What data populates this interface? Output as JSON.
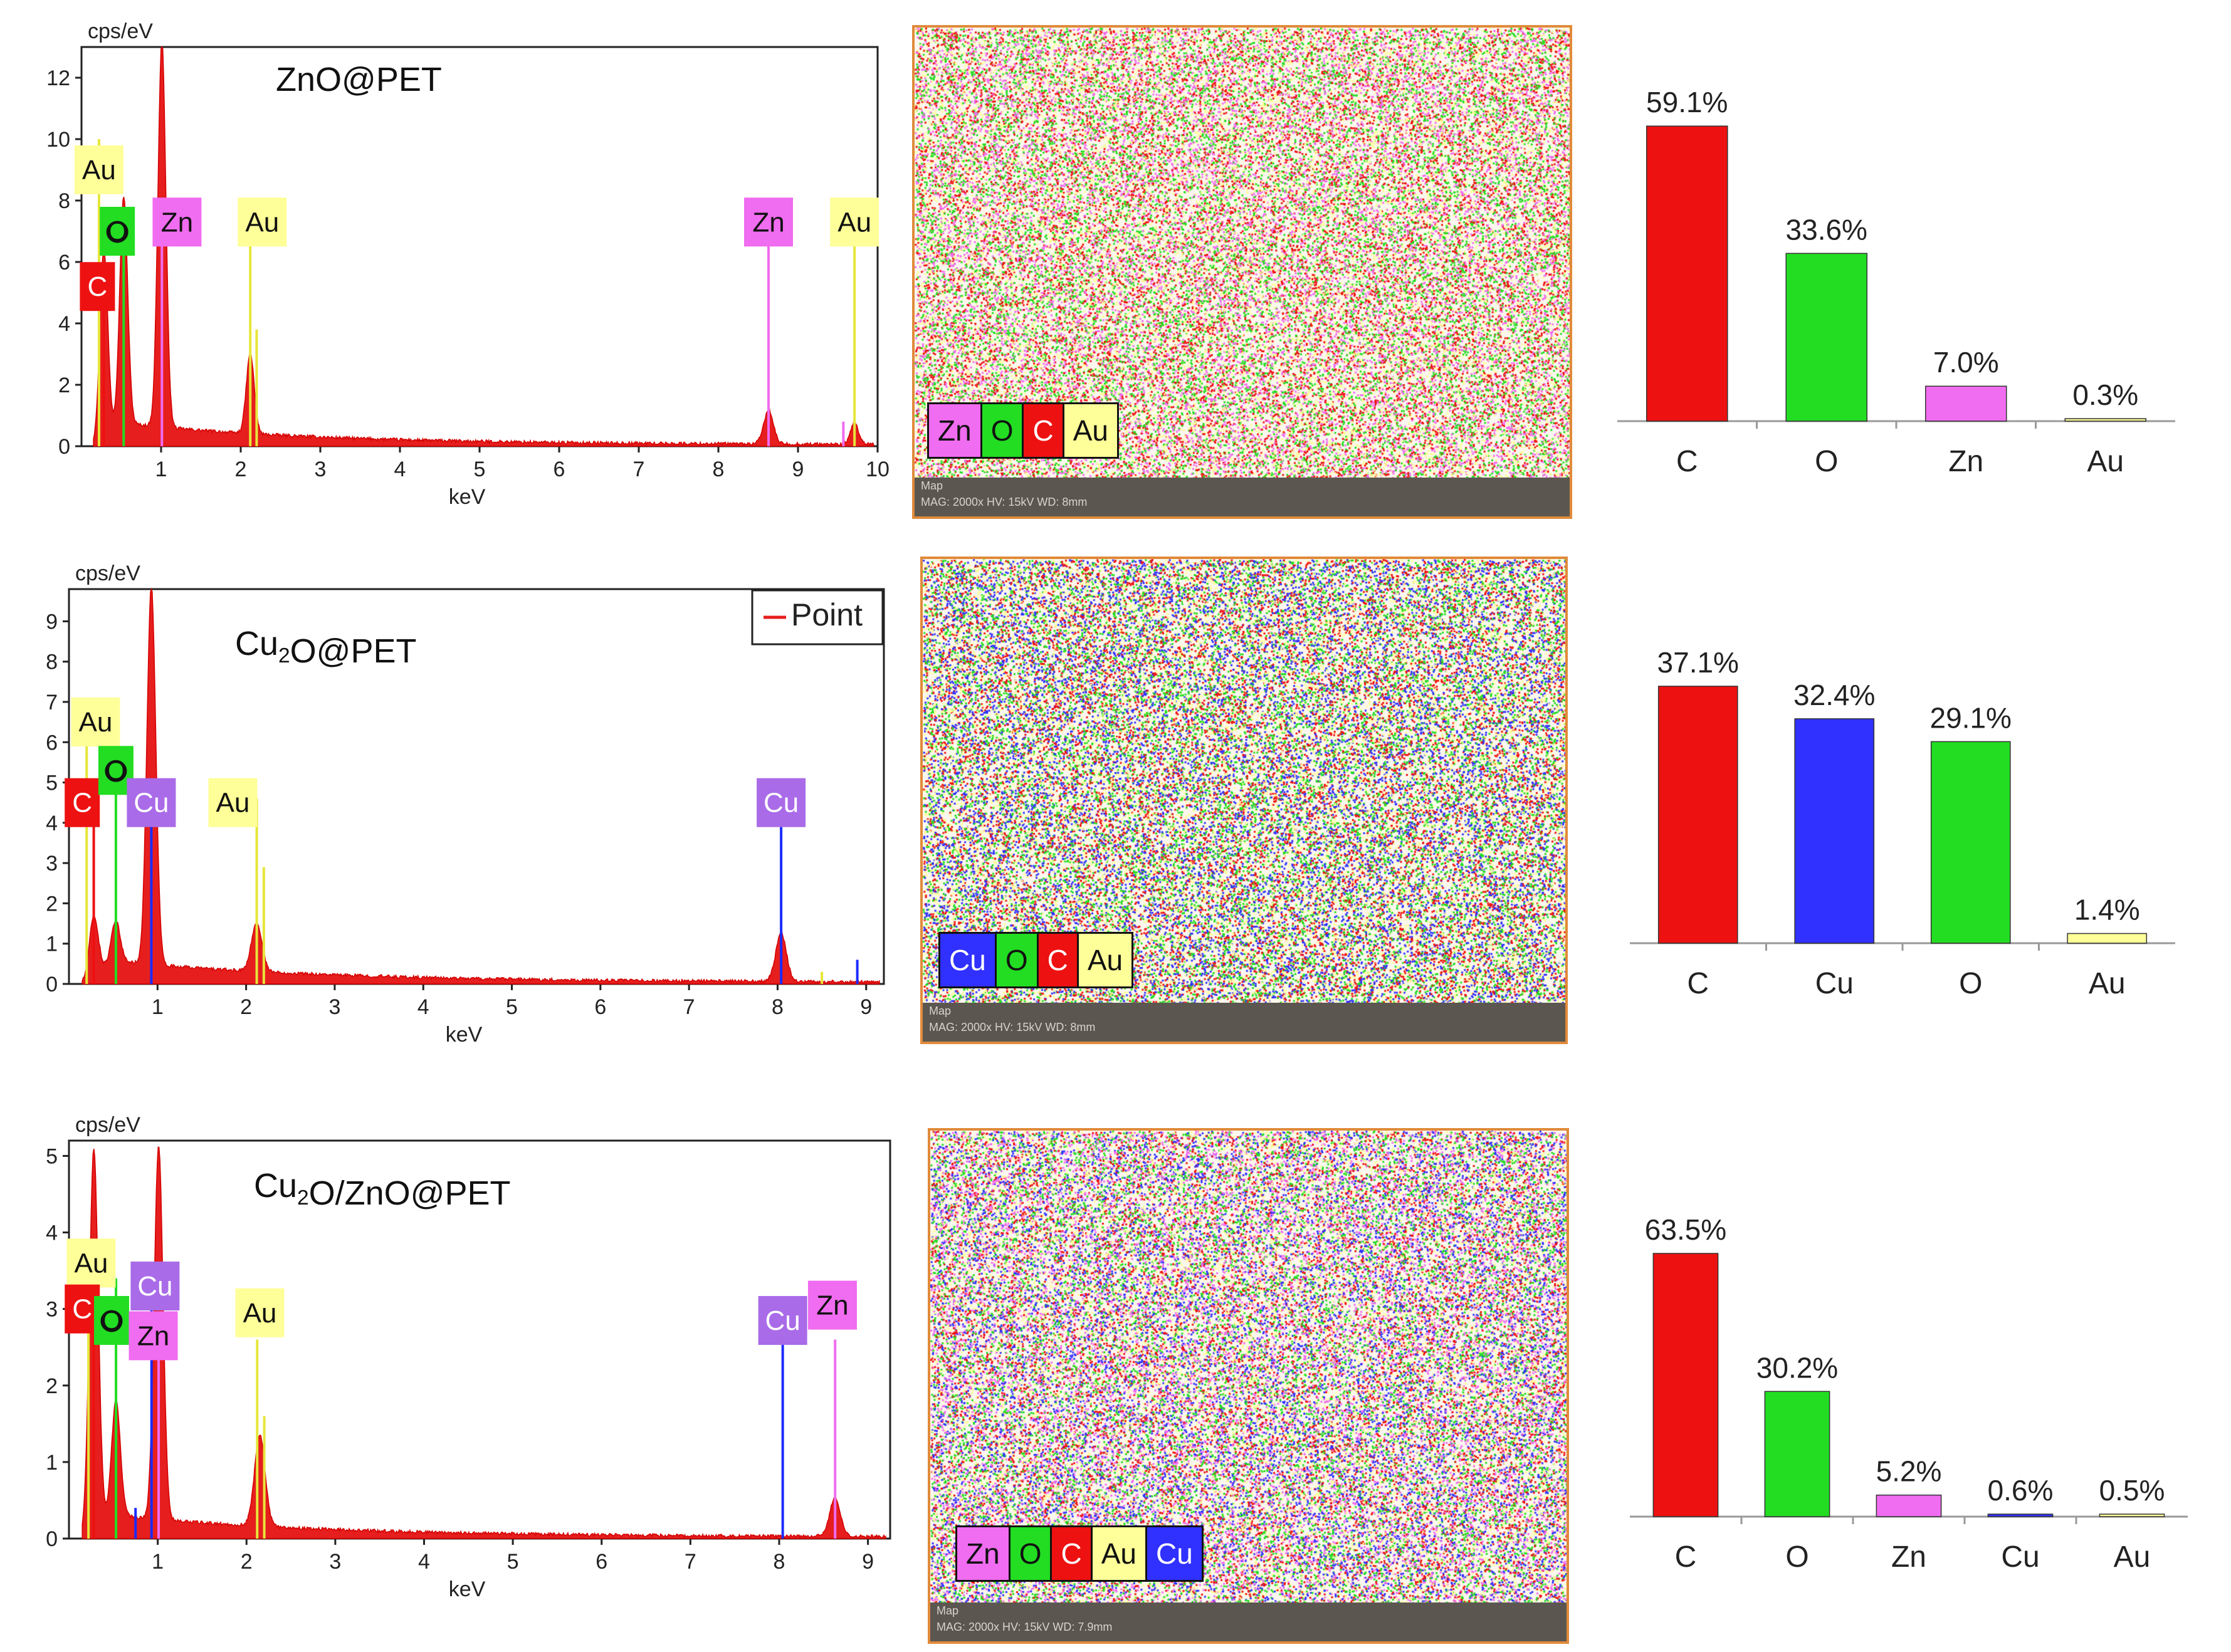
{
  "colors": {
    "C": "#ee1111",
    "O": "#22dd22",
    "Zn": "#f06cf0",
    "Au": "#ffff99",
    "Cu": "#3030ff",
    "CuLabel": "#a96be8",
    "AuLine": "#e6e63a",
    "CuLine": "#1a2bff"
  },
  "chart_data": [
    {
      "type": "line",
      "id": "spectrum-znopet",
      "title": "ZnO@PET",
      "ylabel": "cps/eV",
      "xlabel": "keV",
      "xlim": [
        0,
        10
      ],
      "ylim": [
        0,
        13
      ],
      "xticks": [
        1,
        2,
        3,
        4,
        5,
        6,
        7,
        8,
        9,
        10
      ],
      "yticks": [
        0,
        2,
        4,
        6,
        8,
        10,
        12
      ],
      "legend": null,
      "peaks": [
        {
          "el": "C",
          "x": 0.28,
          "h": 6.2,
          "w": 0.05
        },
        {
          "el": "O",
          "x": 0.53,
          "h": 7.4,
          "w": 0.05
        },
        {
          "el": "Zn",
          "x": 1.01,
          "h": 12.6,
          "w": 0.05
        },
        {
          "el": "Au",
          "x": 2.12,
          "h": 2.6,
          "w": 0.05
        },
        {
          "el": "Zn",
          "x": 8.63,
          "h": 1.1,
          "w": 0.06
        },
        {
          "el": "Au",
          "x": 9.71,
          "h": 0.7,
          "w": 0.05
        }
      ],
      "lines": [
        {
          "el": "Au",
          "x": 0.22,
          "h": 10.0
        },
        {
          "el": "C",
          "x": 0.28,
          "h": 6.0
        },
        {
          "el": "O",
          "x": 0.53,
          "h": 7.2
        },
        {
          "el": "Zn",
          "x": 1.01,
          "h": 7.4
        },
        {
          "el": "Au",
          "x": 2.12,
          "h": 7.4
        },
        {
          "el": "Au",
          "x": 2.2,
          "h": 3.8
        },
        {
          "el": "Zn",
          "x": 8.63,
          "h": 6.6
        },
        {
          "el": "Au",
          "x": 9.71,
          "h": 6.6
        },
        {
          "el": "Zn",
          "x": 9.57,
          "h": 0.8
        }
      ],
      "labels": [
        {
          "el": "Au",
          "text": "Au",
          "x": 0.22,
          "y": 9.0
        },
        {
          "el": "O",
          "text": "O",
          "x": 0.45,
          "y": 7.0
        },
        {
          "el": "Zn",
          "text": "Zn",
          "x": 1.2,
          "y": 7.3
        },
        {
          "el": "C",
          "text": "C",
          "x": 0.2,
          "y": 5.2
        },
        {
          "el": "Au",
          "text": "Au",
          "x": 2.27,
          "y": 7.3
        },
        {
          "el": "Zn",
          "text": "Zn",
          "x": 8.63,
          "y": 7.3
        },
        {
          "el": "Au",
          "text": "Au",
          "x": 9.71,
          "y": 7.3
        }
      ]
    },
    {
      "type": "line",
      "id": "spectrum-cu2opet",
      "title": "Cu2O@PET",
      "ylabel": "cps/eV",
      "xlabel": "keV",
      "xlim": [
        0,
        9.2
      ],
      "ylim": [
        0,
        9.8
      ],
      "xticks": [
        1,
        2,
        3,
        4,
        5,
        6,
        7,
        8,
        9
      ],
      "yticks": [
        0,
        1,
        2,
        3,
        4,
        5,
        6,
        7,
        8,
        9
      ],
      "legend": "Point",
      "peaks": [
        {
          "el": "C",
          "x": 0.28,
          "h": 1.5,
          "w": 0.05
        },
        {
          "el": "O",
          "x": 0.53,
          "h": 1.0,
          "w": 0.05
        },
        {
          "el": "Cu",
          "x": 0.93,
          "h": 9.4,
          "w": 0.05
        },
        {
          "el": "Au",
          "x": 2.12,
          "h": 1.2,
          "w": 0.06
        },
        {
          "el": "Cu",
          "x": 8.04,
          "h": 1.2,
          "w": 0.06
        }
      ],
      "lines": [
        {
          "el": "Au",
          "x": 0.2,
          "h": 6.8
        },
        {
          "el": "C",
          "x": 0.28,
          "h": 5.0
        },
        {
          "el": "O",
          "x": 0.53,
          "h": 5.8
        },
        {
          "el": "Cu",
          "x": 0.93,
          "h": 5.0
        },
        {
          "el": "Au",
          "x": 2.12,
          "h": 4.6
        },
        {
          "el": "Au",
          "x": 2.2,
          "h": 2.9
        },
        {
          "el": "Cu",
          "x": 8.04,
          "h": 4.6
        },
        {
          "el": "Cu",
          "x": 8.9,
          "h": 0.6
        },
        {
          "el": "Au",
          "x": 8.5,
          "h": 0.3
        }
      ],
      "labels": [
        {
          "el": "Au",
          "text": "Au",
          "x": 0.3,
          "y": 6.5
        },
        {
          "el": "C",
          "text": "C",
          "x": 0.15,
          "y": 4.5
        },
        {
          "el": "O",
          "text": "O",
          "x": 0.53,
          "y": 5.3
        },
        {
          "el": "CuLabel",
          "text": "Cu",
          "x": 0.93,
          "y": 4.5
        },
        {
          "el": "Au",
          "text": "Au",
          "x": 1.85,
          "y": 4.5
        },
        {
          "el": "CuLabel",
          "text": "Cu",
          "x": 8.04,
          "y": 4.5
        }
      ]
    },
    {
      "type": "line",
      "id": "spectrum-cu2oznopet",
      "title": "Cu2O/ZnO@PET",
      "ylabel": "cps/eV",
      "xlabel": "keV",
      "xlim": [
        0,
        9.25
      ],
      "ylim": [
        0,
        5.2
      ],
      "xticks": [
        1,
        2,
        3,
        4,
        5,
        6,
        7,
        8,
        9
      ],
      "yticks": [
        0,
        1,
        2,
        3,
        4,
        5
      ],
      "legend": null,
      "peaks": [
        {
          "el": "C",
          "x": 0.28,
          "h": 5.0,
          "w": 0.05
        },
        {
          "el": "O",
          "x": 0.53,
          "h": 1.5,
          "w": 0.05
        },
        {
          "el": "Zn",
          "x": 1.01,
          "h": 4.9,
          "w": 0.05
        },
        {
          "el": "Au",
          "x": 2.15,
          "h": 1.2,
          "w": 0.06
        },
        {
          "el": "Zn",
          "x": 8.63,
          "h": 0.5,
          "w": 0.06
        }
      ],
      "lines": [
        {
          "el": "Au",
          "x": 0.22,
          "h": 3.7
        },
        {
          "el": "C",
          "x": 0.28,
          "h": 3.2
        },
        {
          "el": "O",
          "x": 0.53,
          "h": 3.4
        },
        {
          "el": "Cu",
          "x": 0.93,
          "h": 3.4
        },
        {
          "el": "Zn",
          "x": 1.01,
          "h": 2.8
        },
        {
          "el": "Au",
          "x": 2.12,
          "h": 2.6
        },
        {
          "el": "Au",
          "x": 2.2,
          "h": 1.6
        },
        {
          "el": "Cu",
          "x": 8.04,
          "h": 2.6
        },
        {
          "el": "Zn",
          "x": 8.63,
          "h": 2.6
        },
        {
          "el": "Cu",
          "x": 0.75,
          "h": 0.4
        }
      ],
      "labels": [
        {
          "el": "Au",
          "text": "Au",
          "x": 0.25,
          "y": 3.6
        },
        {
          "el": "C",
          "text": "C",
          "x": 0.15,
          "y": 3.0
        },
        {
          "el": "CuLabel",
          "text": "Cu",
          "x": 0.97,
          "y": 3.3
        },
        {
          "el": "O",
          "text": "O",
          "x": 0.48,
          "y": 2.85
        },
        {
          "el": "Zn",
          "text": "Zn",
          "x": 0.95,
          "y": 2.65
        },
        {
          "el": "Au",
          "text": "Au",
          "x": 2.15,
          "y": 2.95
        },
        {
          "el": "CuLabel",
          "text": "Cu",
          "x": 8.04,
          "y": 2.85
        },
        {
          "el": "Zn",
          "text": "Zn",
          "x": 8.6,
          "y": 3.05
        }
      ]
    },
    {
      "type": "bar",
      "id": "composition-znopet",
      "categories": [
        "C",
        "O",
        "Zn",
        "Au"
      ],
      "values": [
        59.1,
        33.6,
        7.0,
        0.3
      ],
      "value_labels": [
        "59.1%",
        "33.6%",
        "7.0%",
        "0.3%"
      ],
      "bar_colors": [
        "C",
        "O",
        "Zn",
        "Au"
      ],
      "ylim": [
        0,
        60
      ]
    },
    {
      "type": "bar",
      "id": "composition-cu2opet",
      "categories": [
        "C",
        "Cu",
        "O",
        "Au"
      ],
      "values": [
        37.1,
        32.4,
        29.1,
        1.4
      ],
      "value_labels": [
        "37.1%",
        "32.4%",
        "29.1%",
        "1.4%"
      ],
      "bar_colors": [
        "C",
        "Cu",
        "O",
        "Au"
      ],
      "ylim": [
        0,
        38
      ]
    },
    {
      "type": "bar",
      "id": "composition-cu2oznopet",
      "categories": [
        "C",
        "O",
        "Zn",
        "Cu",
        "Au"
      ],
      "values": [
        63.5,
        30.2,
        5.2,
        0.6,
        0.5
      ],
      "value_labels": [
        "63.5%",
        "30.2%",
        "5.2%",
        "0.6%",
        "0.5%"
      ],
      "bar_colors": [
        "C",
        "O",
        "Zn",
        "Cu",
        "Au"
      ],
      "ylim": [
        0,
        63.5
      ]
    }
  ],
  "maps": [
    {
      "id": "map-znopet",
      "legend": [
        "Zn",
        "O",
        "C",
        "Au"
      ],
      "footer_title": "Map",
      "footer_info": "MAG: 2000x  HV: 15kV  WD: 8mm",
      "palette": [
        "C",
        "O",
        "Zn",
        "Au"
      ]
    },
    {
      "id": "map-cu2opet",
      "legend": [
        "Cu",
        "O",
        "C",
        "Au"
      ],
      "footer_title": "Map",
      "footer_info": "MAG: 2000x  HV: 15kV  WD: 8mm",
      "palette": [
        "C",
        "O",
        "Cu",
        "Au"
      ]
    },
    {
      "id": "map-cu2oznopet",
      "legend": [
        "Zn",
        "O",
        "C",
        "Au",
        "Cu"
      ],
      "footer_title": "Map",
      "footer_info": "MAG: 2000x  HV: 15kV  WD: 7.9mm",
      "palette": [
        "C",
        "O",
        "Zn",
        "Au",
        "Cu"
      ]
    }
  ]
}
